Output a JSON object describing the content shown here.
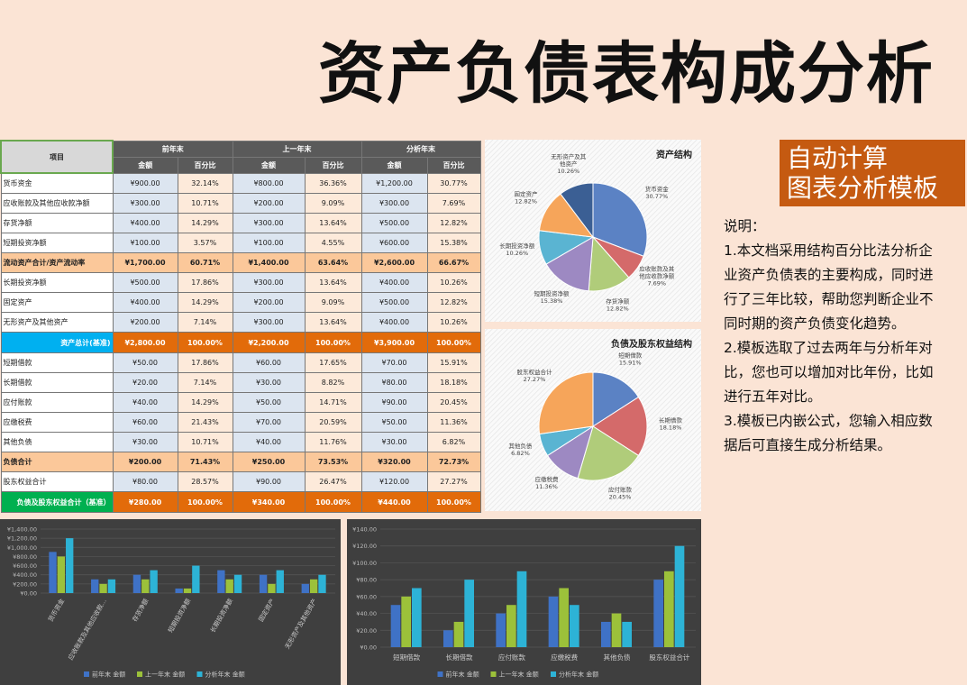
{
  "title": "资产负债表构成分析",
  "table": {
    "item": "项目",
    "groups": [
      "前年末",
      "上一年末",
      "分析年末"
    ],
    "subheaders": [
      "金额",
      "百分比",
      "金额",
      "百分比",
      "金额",
      "百分比"
    ],
    "rows": [
      [
        "货币资金",
        "¥900.00",
        "32.14%",
        "¥800.00",
        "36.36%",
        "¥1,200.00",
        "30.77%"
      ],
      [
        "应收账款及其他应收款净额",
        "¥300.00",
        "10.71%",
        "¥200.00",
        "9.09%",
        "¥300.00",
        "7.69%"
      ],
      [
        "存货净额",
        "¥400.00",
        "14.29%",
        "¥300.00",
        "13.64%",
        "¥500.00",
        "12.82%"
      ],
      [
        "短期投资净额",
        "¥100.00",
        "3.57%",
        "¥100.00",
        "4.55%",
        "¥600.00",
        "15.38%"
      ],
      [
        "流动资产合计/资产流动率",
        "¥1,700.00",
        "60.71%",
        "¥1,400.00",
        "63.64%",
        "¥2,600.00",
        "66.67%"
      ],
      [
        "长期投资净额",
        "¥500.00",
        "17.86%",
        "¥300.00",
        "13.64%",
        "¥400.00",
        "10.26%"
      ],
      [
        "固定资产",
        "¥400.00",
        "14.29%",
        "¥200.00",
        "9.09%",
        "¥500.00",
        "12.82%"
      ],
      [
        "无形资产及其他资产",
        "¥200.00",
        "7.14%",
        "¥300.00",
        "13.64%",
        "¥400.00",
        "10.26%"
      ],
      [
        "资产总计(基准)",
        "¥2,800.00",
        "100.00%",
        "¥2,200.00",
        "100.00%",
        "¥3,900.00",
        "100.00%"
      ],
      [
        "短期借款",
        "¥50.00",
        "17.86%",
        "¥60.00",
        "17.65%",
        "¥70.00",
        "15.91%"
      ],
      [
        "长期借款",
        "¥20.00",
        "7.14%",
        "¥30.00",
        "8.82%",
        "¥80.00",
        "18.18%"
      ],
      [
        "应付账款",
        "¥40.00",
        "14.29%",
        "¥50.00",
        "14.71%",
        "¥90.00",
        "20.45%"
      ],
      [
        "应缴税费",
        "¥60.00",
        "21.43%",
        "¥70.00",
        "20.59%",
        "¥50.00",
        "11.36%"
      ],
      [
        "其他负债",
        "¥30.00",
        "10.71%",
        "¥40.00",
        "11.76%",
        "¥30.00",
        "6.82%"
      ],
      [
        "负债合计",
        "¥200.00",
        "71.43%",
        "¥250.00",
        "73.53%",
        "¥320.00",
        "72.73%"
      ],
      [
        "股东权益合计",
        "¥80.00",
        "28.57%",
        "¥90.00",
        "26.47%",
        "¥120.00",
        "27.27%"
      ],
      [
        "负债及股东权益合计（基准）",
        "¥280.00",
        "100.00%",
        "¥340.00",
        "100.00%",
        "¥440.00",
        "100.00%"
      ]
    ]
  },
  "chart_data": [
    {
      "type": "pie",
      "title": "资产结构",
      "categories": [
        "货币资金",
        "应收账款及其他应收款净额",
        "存货净额",
        "短期投资净额",
        "长期投资净额",
        "固定资产",
        "无形资产及其他资产"
      ],
      "values": [
        30.77,
        7.69,
        12.82,
        15.38,
        10.26,
        12.82,
        10.26
      ],
      "value_labels": [
        "30.77%",
        "7.69%",
        "12.82%",
        "15.38%",
        "10.26%",
        "12.82%",
        "10.26%"
      ],
      "colors": [
        "#5b82c4",
        "#d46a6a",
        "#b0cc7a",
        "#9d89c2",
        "#5ab4d2",
        "#f6a55a",
        "#3b5f94"
      ]
    },
    {
      "type": "pie",
      "title": "负债及股东权益结构",
      "categories": [
        "短期借款",
        "长期借款",
        "应付账款",
        "应缴税费",
        "其他负债",
        "股东权益合计"
      ],
      "values": [
        15.91,
        18.18,
        20.45,
        11.36,
        6.82,
        27.27
      ],
      "value_labels": [
        "15.91%",
        "18.18%",
        "20.45%",
        "11.36%",
        "6.82%",
        "27.27%"
      ],
      "colors": [
        "#5b82c4",
        "#d46a6a",
        "#b0cc7a",
        "#9d89c2",
        "#5ab4d2",
        "#f6a55a"
      ]
    },
    {
      "type": "bar",
      "categories": [
        "货币资金",
        "应收账款及其他应收款…",
        "存货净额",
        "短期投资净额",
        "长期投资净额",
        "固定资产",
        "无形资产及其他资产"
      ],
      "series": [
        {
          "name": "前年末 金额",
          "color": "#3f72c6",
          "values": [
            900,
            300,
            400,
            100,
            500,
            400,
            200
          ]
        },
        {
          "name": "上一年末 金额",
          "color": "#9cc13a",
          "values": [
            800,
            200,
            300,
            100,
            300,
            200,
            300
          ]
        },
        {
          "name": "分析年末 金额",
          "color": "#2db3d6",
          "values": [
            1200,
            300,
            500,
            600,
            400,
            500,
            400
          ]
        }
      ],
      "ylim": [
        0,
        1400
      ],
      "yticks": [
        {
          "value": 0,
          "label": "¥0.00"
        },
        {
          "value": 200,
          "label": "¥200.00"
        },
        {
          "value": 400,
          "label": "¥400.00"
        },
        {
          "value": 600,
          "label": "¥600.00"
        },
        {
          "value": 800,
          "label": "¥800.00"
        },
        {
          "value": 1000,
          "label": "¥1,000.00"
        },
        {
          "value": 1200,
          "label": "¥1,200.00"
        },
        {
          "value": 1400,
          "label": "¥1,400.00"
        }
      ],
      "grid": true
    },
    {
      "type": "bar",
      "categories": [
        "短期借款",
        "长期借款",
        "应付账款",
        "应缴税费",
        "其他负债",
        "股东权益合计"
      ],
      "series": [
        {
          "name": "前年末 金额",
          "color": "#3f72c6",
          "values": [
            50,
            20,
            40,
            60,
            30,
            80
          ]
        },
        {
          "name": "上一年末 金额",
          "color": "#9cc13a",
          "values": [
            60,
            30,
            50,
            70,
            40,
            90
          ]
        },
        {
          "name": "分析年末 金额",
          "color": "#2db3d6",
          "values": [
            70,
            80,
            90,
            50,
            30,
            120
          ]
        }
      ],
      "ylim": [
        0,
        140
      ],
      "yticks": [
        {
          "value": 0,
          "label": "¥0.00"
        },
        {
          "value": 20,
          "label": "¥20.00"
        },
        {
          "value": 40,
          "label": "¥40.00"
        },
        {
          "value": 60,
          "label": "¥60.00"
        },
        {
          "value": 80,
          "label": "¥80.00"
        },
        {
          "value": 100,
          "label": "¥100.00"
        },
        {
          "value": 120,
          "label": "¥120.00"
        },
        {
          "value": 140,
          "label": "¥140.00"
        }
      ],
      "grid": true
    }
  ],
  "badge": [
    "自动计算",
    "图表分析模板"
  ],
  "notes": {
    "heading": "说明：",
    "items": [
      "1.本文档采用结构百分比法分析企业资产负债表的主要构成，同时进行了三年比较，帮助您判断企业不同时期的资产负债变化趋势。",
      "2.模板选取了过去两年与分析年对比，您也可以增加对比年份，比如进行五年对比。",
      "3.模板已内嵌公式，您输入相应数据后可直接生成分析结果。"
    ]
  }
}
